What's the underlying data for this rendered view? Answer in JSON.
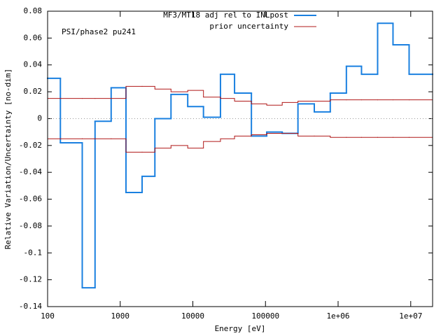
{
  "chart_data": {
    "type": "step",
    "annotation": "PSI/phase2 pu241",
    "xlabel": "Energy [eV]",
    "ylabel": "Relative Variation/Uncertainty [no-dim]",
    "xscale": "log",
    "zeroaxis": true,
    "legend": "top-right",
    "bin_edges": [
      100,
      150,
      300,
      450,
      750,
      1200,
      2000,
      3000,
      5000,
      8500,
      14000,
      24000,
      37500,
      64000,
      104000,
      170000,
      280000,
      470000,
      780000,
      1300000,
      2100000,
      3500000,
      5700000,
      9500000,
      20000000
    ],
    "series": [
      {
        "name": "MF3/MT18 adj rel to INLpost",
        "color": "#1a80e0",
        "values": [
          0.03,
          -0.018,
          -0.126,
          -0.002,
          0.023,
          -0.055,
          -0.043,
          0,
          0.018,
          0.009,
          0.001,
          0.033,
          0.019,
          -0.013,
          -0.01,
          -0.011,
          0.011,
          0.005,
          0.019,
          0.039,
          0.033,
          0.071,
          0.055,
          0.033
        ]
      },
      {
        "name": "prior uncertainty",
        "color": "#b01818",
        "values": [
          0.015,
          0.015,
          0.015,
          0.015,
          0.015,
          0.024,
          0.024,
          0.022,
          0.02,
          0.021,
          0.016,
          0.015,
          0.013,
          0.011,
          0.01,
          0.012,
          0.013,
          0.013,
          0.014,
          0.014,
          0.014,
          0.014,
          0.014,
          0.014
        ],
        "lower": [
          -0.015,
          -0.015,
          -0.015,
          -0.015,
          -0.015,
          -0.025,
          -0.025,
          -0.022,
          -0.02,
          -0.022,
          -0.017,
          -0.015,
          -0.013,
          -0.012,
          -0.011,
          -0.011,
          -0.013,
          -0.013,
          -0.014,
          -0.014,
          -0.014,
          -0.014,
          -0.014,
          -0.014
        ]
      }
    ],
    "xlim": [
      100,
      20000000
    ],
    "xticks": [
      100,
      1000,
      10000,
      100000,
      {
        "value": 1000000,
        "label": "1e+06"
      },
      {
        "value": 10000000,
        "label": "1e+07"
      }
    ],
    "ylim": [
      -0.14,
      0.08
    ],
    "yticks": [
      -0.14,
      -0.12,
      -0.1,
      -0.08,
      -0.06,
      -0.04,
      -0.02,
      0,
      0.02,
      0.04,
      0.06,
      0.08
    ]
  }
}
